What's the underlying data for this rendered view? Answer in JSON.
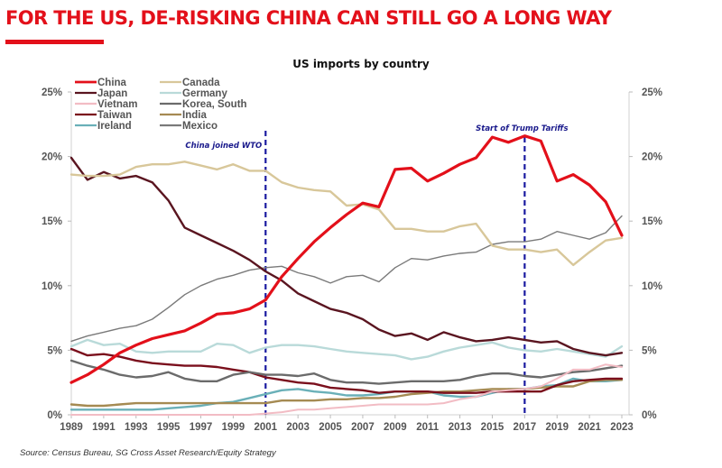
{
  "headline": "FOR THE US, DE-RISKING CHINA CAN STILL GO A LONG WAY",
  "source": "Source:  Census Bureau, SG Cross Asset Research/Equity Strategy",
  "colors": {
    "headline": "#e3101a",
    "annotation": "#1a1a8c"
  },
  "chart_data": {
    "type": "line",
    "title": "US imports by country",
    "xlabel": "",
    "ylabel": "",
    "ylim": [
      0,
      25
    ],
    "xlim": [
      1989,
      2023
    ],
    "y_ticks": [
      "0%",
      "5%",
      "10%",
      "15%",
      "20%",
      "25%"
    ],
    "y_tick_values": [
      0,
      5,
      10,
      15,
      20,
      25
    ],
    "x_ticks": [
      "1989",
      "1991",
      "1993",
      "1995",
      "1997",
      "1999",
      "2001",
      "2003",
      "2005",
      "2007",
      "2009",
      "2011",
      "2013",
      "2015",
      "2017",
      "2019",
      "2021",
      "2023"
    ],
    "x": [
      1989,
      1990,
      1991,
      1992,
      1993,
      1994,
      1995,
      1996,
      1997,
      1998,
      1999,
      2000,
      2001,
      2002,
      2003,
      2004,
      2005,
      2006,
      2007,
      2008,
      2009,
      2010,
      2011,
      2012,
      2013,
      2014,
      2015,
      2016,
      2017,
      2018,
      2019,
      2020,
      2021,
      2022,
      2023
    ],
    "grid": false,
    "legend_position": "top-left",
    "dual_axis_mirrored": true,
    "series": [
      {
        "name": "China",
        "color": "#e3101a",
        "width": 3.2,
        "values": [
          2.5,
          3.1,
          3.9,
          4.8,
          5.4,
          5.9,
          6.2,
          6.5,
          7.1,
          7.8,
          7.9,
          8.2,
          8.9,
          10.7,
          12.1,
          13.4,
          14.5,
          15.5,
          16.4,
          16.1,
          19.0,
          19.1,
          18.1,
          18.7,
          19.4,
          19.9,
          21.5,
          21.1,
          21.6,
          21.2,
          18.1,
          18.6,
          17.8,
          16.5,
          13.9
        ]
      },
      {
        "name": "Canada",
        "color": "#d8c79a",
        "width": 2.4,
        "values": [
          18.6,
          18.5,
          18.5,
          18.6,
          19.2,
          19.4,
          19.4,
          19.6,
          19.3,
          19.0,
          19.4,
          18.9,
          18.9,
          18.0,
          17.6,
          17.4,
          17.3,
          16.2,
          16.3,
          15.9,
          14.4,
          14.4,
          14.2,
          14.2,
          14.6,
          14.8,
          13.1,
          12.8,
          12.8,
          12.6,
          12.8,
          11.6,
          12.6,
          13.5,
          13.7
        ]
      },
      {
        "name": "Japan",
        "color": "#5a1520",
        "width": 2.4,
        "values": [
          19.9,
          18.2,
          18.8,
          18.3,
          18.5,
          18.0,
          16.6,
          14.5,
          13.9,
          13.3,
          12.7,
          12.0,
          11.1,
          10.4,
          9.4,
          8.8,
          8.2,
          7.9,
          7.4,
          6.6,
          6.1,
          6.3,
          5.8,
          6.4,
          6.0,
          5.7,
          5.8,
          6.0,
          5.8,
          5.6,
          5.7,
          5.1,
          4.8,
          4.6,
          4.8
        ]
      },
      {
        "name": "Germany",
        "color": "#b9dad9",
        "width": 2.4,
        "values": [
          5.3,
          5.8,
          5.4,
          5.5,
          4.9,
          4.8,
          4.9,
          4.9,
          4.9,
          5.5,
          5.4,
          4.8,
          5.2,
          5.4,
          5.4,
          5.3,
          5.1,
          4.9,
          4.8,
          4.7,
          4.6,
          4.3,
          4.5,
          4.9,
          5.2,
          5.4,
          5.6,
          5.2,
          5.0,
          4.9,
          5.1,
          4.9,
          4.7,
          4.5,
          5.3
        ]
      },
      {
        "name": "Vietnam",
        "color": "#f2bcc4",
        "width": 2.0,
        "values": [
          0,
          0,
          0,
          0,
          0,
          0,
          0,
          0,
          0,
          0,
          0,
          0,
          0.1,
          0.2,
          0.4,
          0.4,
          0.5,
          0.6,
          0.7,
          0.8,
          0.8,
          0.8,
          0.8,
          0.9,
          1.2,
          1.4,
          1.8,
          1.9,
          2.0,
          2.2,
          2.8,
          3.5,
          3.5,
          3.9,
          3.7
        ]
      },
      {
        "name": "Korea, South",
        "color": "#6b6b6b",
        "width": 2.4,
        "values": [
          4.2,
          3.8,
          3.5,
          3.1,
          2.9,
          3.0,
          3.3,
          2.8,
          2.6,
          2.6,
          3.1,
          3.3,
          3.1,
          3.1,
          3.0,
          3.2,
          2.7,
          2.5,
          2.5,
          2.4,
          2.5,
          2.6,
          2.6,
          2.6,
          2.7,
          3.0,
          3.2,
          3.2,
          3.0,
          2.9,
          3.1,
          3.3,
          3.4,
          3.6,
          3.8
        ]
      },
      {
        "name": "Taiwan",
        "color": "#7a0f1c",
        "width": 2.4,
        "values": [
          5.1,
          4.6,
          4.7,
          4.5,
          4.2,
          4.0,
          3.9,
          3.8,
          3.8,
          3.7,
          3.5,
          3.3,
          2.9,
          2.7,
          2.5,
          2.4,
          2.1,
          2.0,
          1.9,
          1.7,
          1.8,
          1.8,
          1.8,
          1.7,
          1.7,
          1.7,
          1.8,
          1.8,
          1.8,
          1.8,
          2.3,
          2.6,
          2.7,
          2.8,
          2.8
        ]
      },
      {
        "name": "India",
        "color": "#a58a52",
        "width": 2.4,
        "values": [
          0.8,
          0.7,
          0.7,
          0.8,
          0.9,
          0.9,
          0.9,
          0.9,
          0.9,
          0.9,
          0.9,
          0.9,
          0.9,
          1.1,
          1.1,
          1.1,
          1.2,
          1.2,
          1.3,
          1.3,
          1.4,
          1.6,
          1.7,
          1.8,
          1.8,
          1.9,
          2.0,
          2.0,
          2.0,
          2.1,
          2.2,
          2.2,
          2.6,
          2.7,
          2.7
        ]
      },
      {
        "name": "Ireland",
        "color": "#6ab0b8",
        "width": 2.4,
        "values": [
          0.4,
          0.4,
          0.4,
          0.4,
          0.4,
          0.4,
          0.5,
          0.6,
          0.7,
          0.9,
          1.0,
          1.3,
          1.6,
          1.9,
          2.0,
          1.8,
          1.7,
          1.5,
          1.5,
          1.6,
          1.8,
          1.8,
          1.8,
          1.5,
          1.4,
          1.4,
          1.7,
          2.0,
          2.0,
          2.2,
          2.3,
          2.8,
          2.6,
          2.6,
          2.7
        ]
      },
      {
        "name": "Mexico",
        "color": "#7a7a7a",
        "width": 1.4,
        "values": [
          5.7,
          6.1,
          6.4,
          6.7,
          6.9,
          7.4,
          8.3,
          9.3,
          10.0,
          10.5,
          10.8,
          11.2,
          11.4,
          11.5,
          11.0,
          10.7,
          10.2,
          10.7,
          10.8,
          10.3,
          11.4,
          12.1,
          12.0,
          12.3,
          12.5,
          12.6,
          13.2,
          13.4,
          13.4,
          13.6,
          14.2,
          13.9,
          13.6,
          14.1,
          15.4
        ]
      }
    ],
    "annotations": [
      {
        "label": "China joined WTO",
        "x": 2001
      },
      {
        "label": "Start of Trump Tariffs",
        "x": 2017
      }
    ]
  }
}
